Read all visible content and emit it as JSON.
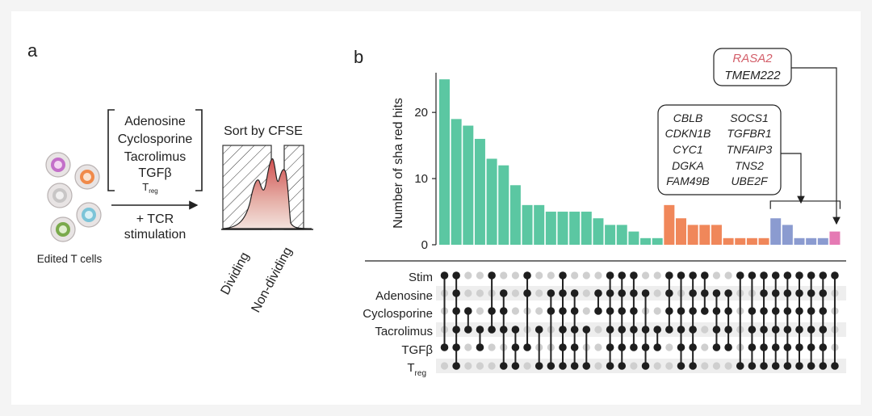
{
  "panel_a": {
    "label": "a",
    "conditions": [
      "Adenosine",
      "Cyclosporine",
      "Tacrolimus",
      "TGFβ"
    ],
    "treg_main": "T",
    "treg_sub": "reg",
    "cells_label": "Edited T cells",
    "tcr_line1": "+ TCR",
    "tcr_line2": "stimulation",
    "sort_label": "Sort by CFSE",
    "dividing_label": "Dividing",
    "nondividing_label": "Non-dividing"
  },
  "panel_b": {
    "label": "b",
    "callout_rasa2": "RASA2",
    "callout_tmem222": "TMEM222",
    "callout_genes_left": [
      "CBLB",
      "CDKN1B",
      "CYC1",
      "DGKA",
      "FAM49B"
    ],
    "callout_genes_right": [
      "SOCS1",
      "TGFBR1",
      "TNFAIP3",
      "TNS2",
      "UBE2F"
    ],
    "matrix_rows": [
      "Stim",
      "Adenosine",
      "Cyclosporine",
      "Tacrolimus",
      "TGFβ",
      "T"
    ],
    "treg_sub": "reg"
  },
  "colors": {
    "teal": "#5bc7a2",
    "orange": "#f0875a",
    "blue": "#8b9bd0",
    "pink": "#e57ab4",
    "rasa2": "#d35f6a"
  },
  "chart_data": {
    "type": "bar",
    "ylabel": "Number of sha red hits",
    "ylim": [
      0,
      26
    ],
    "yticks": [
      0,
      10,
      20
    ],
    "values": [
      25,
      19,
      18,
      16,
      13,
      12,
      9,
      6,
      6,
      5,
      5,
      5,
      5,
      4,
      3,
      3,
      2,
      1,
      1,
      6,
      4,
      3,
      3,
      3,
      1,
      1,
      1,
      1,
      4,
      3,
      1,
      1,
      1,
      2
    ],
    "group_colors": [
      "teal",
      "teal",
      "teal",
      "teal",
      "teal",
      "teal",
      "teal",
      "teal",
      "teal",
      "teal",
      "teal",
      "teal",
      "teal",
      "teal",
      "teal",
      "teal",
      "teal",
      "teal",
      "teal",
      "orange",
      "orange",
      "orange",
      "orange",
      "orange",
      "orange",
      "orange",
      "orange",
      "orange",
      "blue",
      "blue",
      "blue",
      "blue",
      "blue",
      "pink"
    ],
    "intersections": [
      [
        0,
        4
      ],
      [
        0,
        1,
        2,
        3,
        4,
        5
      ],
      [
        2,
        3
      ],
      [
        3,
        4
      ],
      [
        0,
        2,
        3
      ],
      [
        1,
        2,
        3,
        5
      ],
      [
        3,
        4,
        5
      ],
      [
        0,
        1,
        4
      ],
      [
        3,
        5
      ],
      [
        1,
        2,
        5
      ],
      [
        0,
        1,
        2,
        3,
        4,
        5
      ],
      [
        1,
        2,
        3,
        4,
        5
      ],
      [
        3,
        5
      ],
      [
        1,
        2
      ],
      [
        0,
        1,
        2,
        3,
        4,
        5
      ],
      [
        0,
        1,
        2,
        3,
        4,
        5
      ],
      [
        0,
        1,
        2,
        3,
        4
      ],
      [
        1,
        3,
        4,
        5
      ],
      [
        3,
        4
      ],
      [
        0,
        1,
        2,
        3
      ],
      [
        0,
        2,
        3,
        4,
        5
      ],
      [
        0,
        1,
        2,
        3,
        4,
        5
      ],
      [
        0,
        1,
        2
      ],
      [
        1,
        2,
        3,
        4
      ],
      [
        1,
        2,
        3,
        4
      ],
      [
        0,
        5
      ],
      [
        0,
        2,
        3,
        4,
        5
      ],
      [
        0,
        1,
        2,
        3,
        4,
        5
      ],
      [
        0,
        1,
        2,
        3,
        4,
        5
      ],
      [
        0,
        1,
        2,
        3,
        4,
        5
      ],
      [
        0,
        1,
        2,
        3,
        4,
        5
      ],
      [
        0,
        1,
        2,
        3,
        4,
        5
      ],
      [
        0,
        1,
        2,
        3,
        4,
        5
      ],
      [
        0,
        5
      ]
    ],
    "groups": [
      {
        "name": "teal",
        "bars": 19
      },
      {
        "name": "orange",
        "bars": 9
      },
      {
        "name": "blue",
        "bars": 5
      },
      {
        "name": "pink",
        "bars": 1
      }
    ]
  }
}
